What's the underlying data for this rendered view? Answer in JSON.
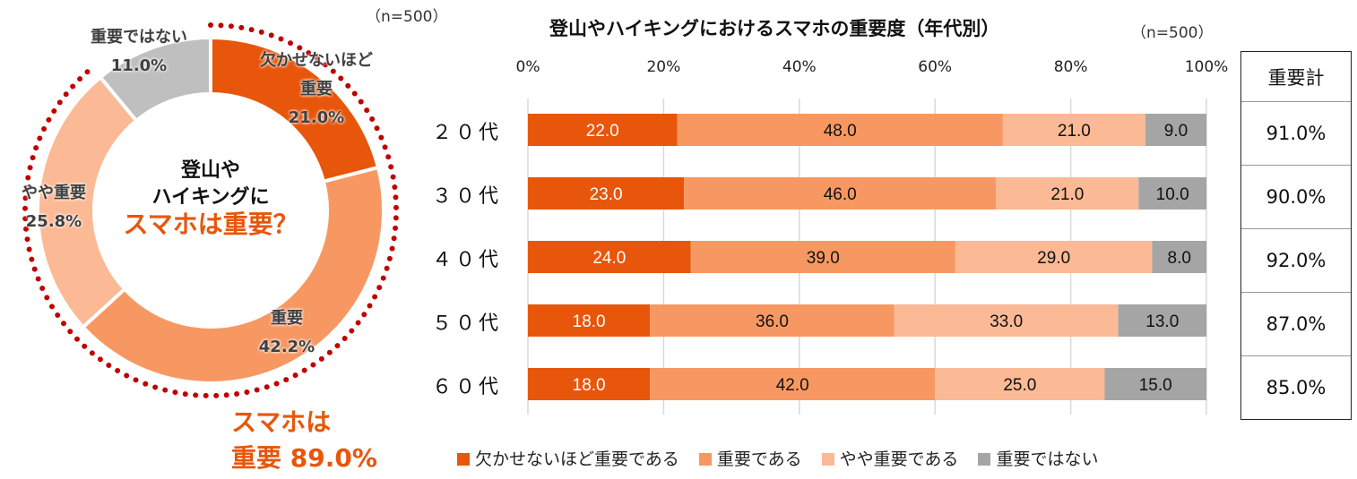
{
  "colors": {
    "essential": "#E8560B",
    "important": "#F79862",
    "somewhat": "#FBB995",
    "not": "#BFBFBF",
    "not_bar": "#A5A5A5",
    "dots": "#C00000"
  },
  "donut": {
    "n_label": "（n=500）",
    "center": {
      "line1": "登山や",
      "line2": "ハイキングに",
      "line3": "スマホは重要？"
    },
    "total": {
      "line1": "スマホは",
      "line2": "重要 89.0%"
    },
    "chart_data": {
      "type": "pie",
      "slices": [
        {
          "name": "欠かせないほど重要",
          "value": 21.0,
          "label1": "欠かせないほど",
          "label2": "重要",
          "pct": "21.0%"
        },
        {
          "name": "重要",
          "value": 42.2,
          "label1": "重要",
          "pct": "42.2%"
        },
        {
          "name": "やや重要",
          "value": 25.8,
          "label1": "やや重要",
          "pct": "25.8%"
        },
        {
          "name": "重要ではない",
          "value": 11.0,
          "label1": "重要ではない",
          "pct": "11.0%"
        }
      ]
    }
  },
  "bar": {
    "title": "登山やハイキングにおけるスマホの重要度（年代別）",
    "n_label": "（n=500）",
    "chart_data": {
      "type": "bar",
      "orientation": "horizontal-stacked-100",
      "categories": [
        "２０代",
        "３０代",
        "４０代",
        "５０代",
        "６０代"
      ],
      "x_ticks": [
        "0%",
        "20%",
        "40%",
        "60%",
        "80%",
        "100%"
      ],
      "xlim": [
        0,
        100
      ],
      "grid": true,
      "legend_position": "bottom",
      "series": [
        {
          "name": "欠かせないほど重要である",
          "values": [
            22.0,
            23.0,
            24.0,
            18.0,
            18.0
          ]
        },
        {
          "name": "重要である",
          "values": [
            48.0,
            46.0,
            39.0,
            36.0,
            42.0
          ]
        },
        {
          "name": "やや重要である",
          "values": [
            21.0,
            21.0,
            29.0,
            33.0,
            25.0
          ]
        },
        {
          "name": "重要ではない",
          "values": [
            9.0,
            10.0,
            8.0,
            13.0,
            15.0
          ]
        }
      ]
    },
    "table": {
      "header": "重要計",
      "values": [
        "91.0%",
        "90.0%",
        "92.0%",
        "87.0%",
        "85.0%"
      ]
    }
  }
}
